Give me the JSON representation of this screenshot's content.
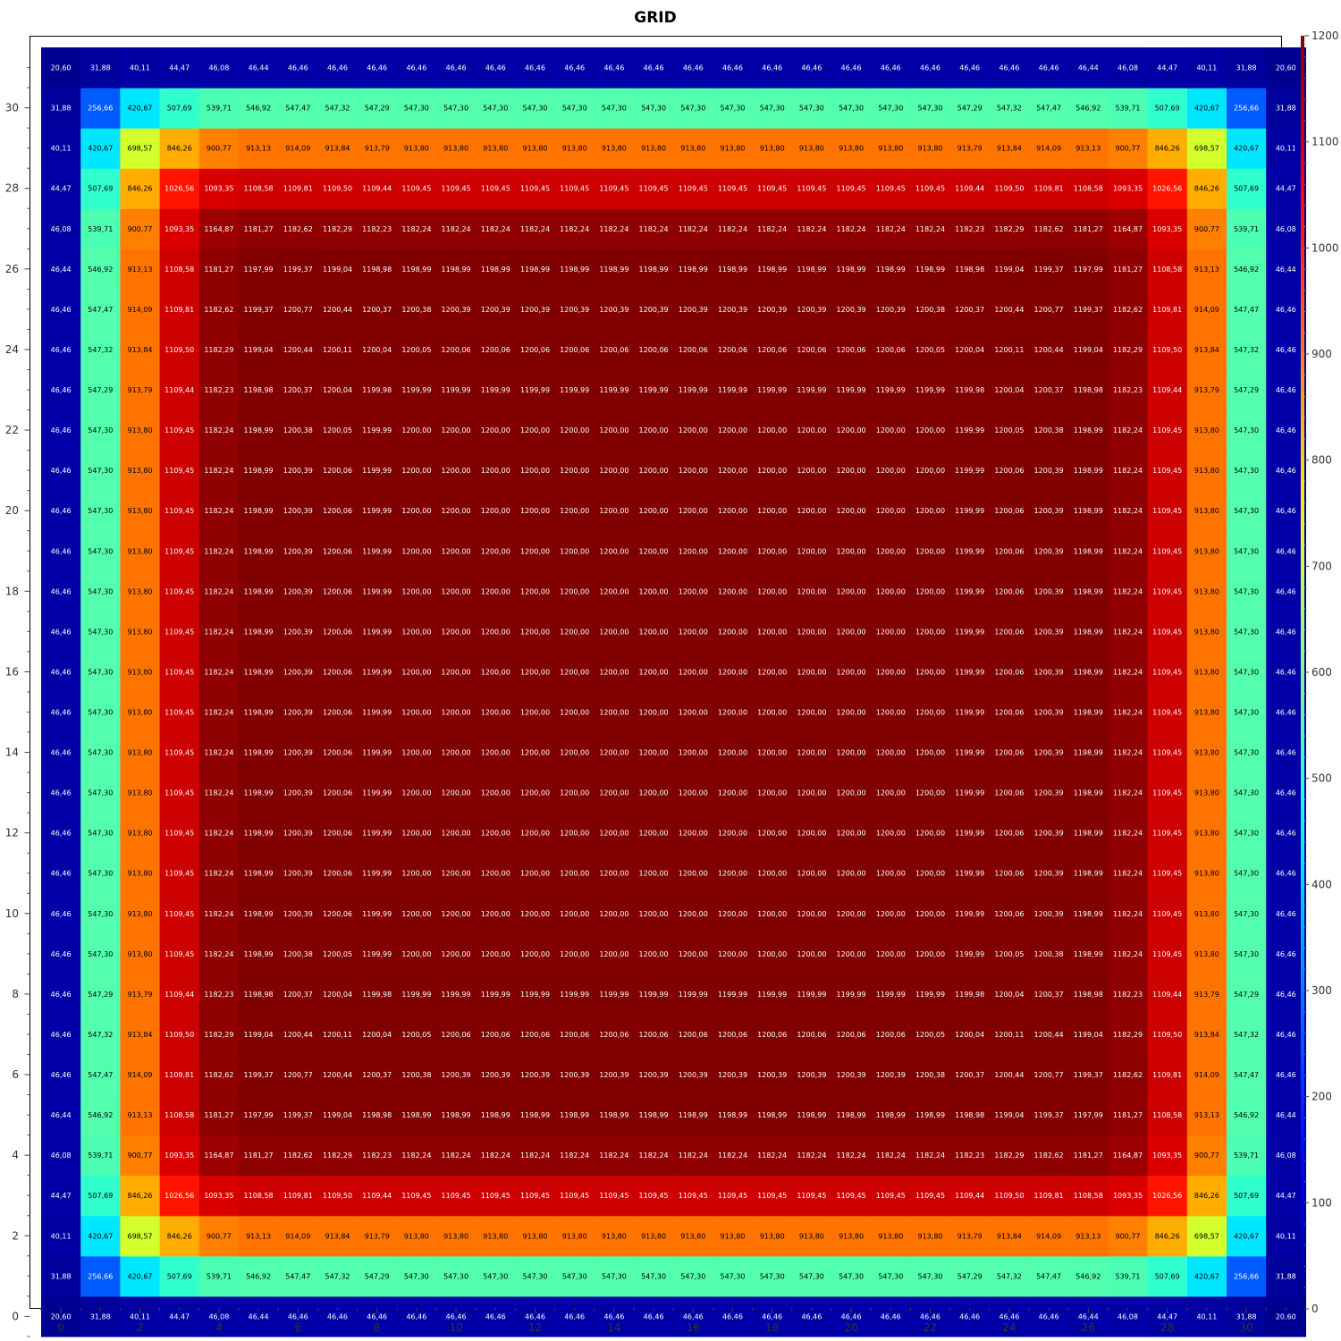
{
  "chart_data": {
    "type": "heatmap",
    "title": "GRID",
    "xlabel": "",
    "ylabel": "",
    "x_range": [
      -0.5,
      31.5
    ],
    "y_range": [
      -0.5,
      31.5
    ],
    "x_tick_labels": [
      "0",
      "2",
      "4",
      "6",
      "8",
      "10",
      "12",
      "14",
      "16",
      "18",
      "20",
      "22",
      "24",
      "26",
      "28",
      "30"
    ],
    "y_tick_labels": [
      "0",
      "2",
      "4",
      "6",
      "8",
      "10",
      "12",
      "14",
      "16",
      "18",
      "20",
      "22",
      "24",
      "26",
      "28",
      "30"
    ],
    "colorbar": {
      "min": 0,
      "max": 1200,
      "tick_labels": [
        "0",
        "100",
        "200",
        "300",
        "400",
        "500",
        "600",
        "700",
        "800",
        "900",
        "1000",
        "1100",
        "1200"
      ],
      "colormap": "jet"
    },
    "value_format": "2 decimals, comma as decimal separator",
    "grid_size": [
      32,
      32
    ],
    "symmetry": "values are symmetric about the grid centre; quadrant below gives rows 0-15 x columns 0-15",
    "quadrant_rows": [
      [
        20.6,
        31.88,
        40.11,
        44.47,
        46.08,
        46.44,
        46.46,
        46.46,
        46.46,
        46.46,
        46.46,
        46.46,
        46.46,
        46.46,
        46.46,
        46.46
      ],
      [
        31.88,
        256.66,
        420.67,
        507.69,
        539.71,
        546.92,
        547.47,
        547.32,
        547.29,
        547.3,
        547.3,
        547.3,
        547.3,
        547.3,
        547.3,
        547.3
      ],
      [
        40.11,
        420.67,
        698.57,
        846.26,
        900.77,
        913.13,
        914.09,
        913.84,
        913.79,
        913.8,
        913.8,
        913.8,
        913.8,
        913.8,
        913.8,
        913.8
      ],
      [
        44.47,
        507.69,
        846.26,
        1026.56,
        1093.35,
        1108.58,
        1109.81,
        1109.5,
        1109.44,
        1109.45,
        1109.45,
        1109.45,
        1109.45,
        1109.45,
        1109.45,
        1109.45
      ],
      [
        46.08,
        539.71,
        900.77,
        1093.35,
        1164.87,
        1181.27,
        1182.62,
        1182.29,
        1182.23,
        1182.24,
        1182.24,
        1182.24,
        1182.24,
        1182.24,
        1182.24,
        1182.24
      ],
      [
        46.44,
        546.92,
        913.13,
        1108.58,
        1181.27,
        1197.99,
        1199.37,
        1199.04,
        1198.98,
        1198.99,
        1198.99,
        1198.99,
        1198.99,
        1198.99,
        1198.99,
        1198.99
      ],
      [
        46.46,
        547.47,
        914.09,
        1109.81,
        1182.62,
        1199.37,
        1200.77,
        1200.44,
        1200.37,
        1200.38,
        1200.39,
        1200.39,
        1200.39,
        1200.39,
        1200.39,
        1200.39
      ],
      [
        46.46,
        547.32,
        913.84,
        1109.5,
        1182.29,
        1199.04,
        1200.44,
        1200.11,
        1200.04,
        1200.05,
        1200.06,
        1200.06,
        1200.06,
        1200.06,
        1200.06,
        1200.06
      ],
      [
        46.46,
        547.29,
        913.79,
        1109.44,
        1182.23,
        1198.98,
        1200.37,
        1200.04,
        1199.98,
        1199.99,
        1199.99,
        1199.99,
        1199.99,
        1199.99,
        1199.99,
        1199.99
      ],
      [
        46.46,
        547.3,
        913.8,
        1109.45,
        1182.24,
        1198.99,
        1200.38,
        1200.05,
        1199.99,
        1200.0,
        1200.0,
        1200.0,
        1200.0,
        1200.0,
        1200.0,
        1200.0
      ],
      [
        46.46,
        547.3,
        913.8,
        1109.45,
        1182.24,
        1198.99,
        1200.39,
        1200.06,
        1199.99,
        1200.0,
        1200.0,
        1200.0,
        1200.0,
        1200.0,
        1200.0,
        1200.0
      ],
      [
        46.46,
        547.3,
        913.8,
        1109.45,
        1182.24,
        1198.99,
        1200.39,
        1200.06,
        1199.99,
        1200.0,
        1200.0,
        1200.0,
        1200.0,
        1200.0,
        1200.0,
        1200.0
      ],
      [
        46.46,
        547.3,
        913.8,
        1109.45,
        1182.24,
        1198.99,
        1200.39,
        1200.06,
        1199.99,
        1200.0,
        1200.0,
        1200.0,
        1200.0,
        1200.0,
        1200.0,
        1200.0
      ],
      [
        46.46,
        547.3,
        913.8,
        1109.45,
        1182.24,
        1198.99,
        1200.39,
        1200.06,
        1199.99,
        1200.0,
        1200.0,
        1200.0,
        1200.0,
        1200.0,
        1200.0,
        1200.0
      ],
      [
        46.46,
        547.3,
        913.8,
        1109.45,
        1182.24,
        1198.99,
        1200.39,
        1200.06,
        1199.99,
        1200.0,
        1200.0,
        1200.0,
        1200.0,
        1200.0,
        1200.0,
        1200.0
      ],
      [
        46.46,
        547.3,
        913.8,
        1109.45,
        1182.24,
        1198.99,
        1200.39,
        1200.06,
        1199.99,
        1200.0,
        1200.0,
        1200.0,
        1200.0,
        1200.0,
        1200.0,
        1200.0
      ]
    ]
  }
}
